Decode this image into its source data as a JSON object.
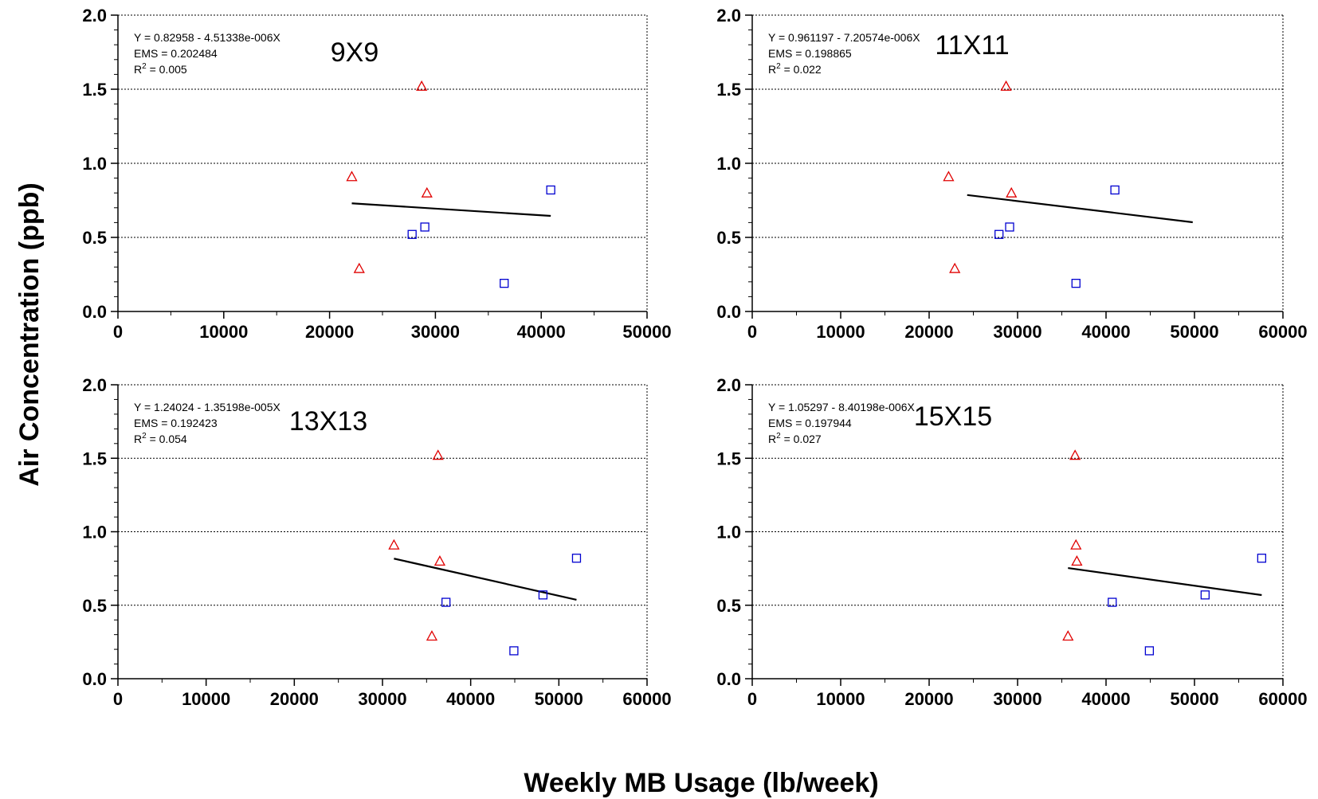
{
  "figure": {
    "ylabel": "Air Concentration (ppb)",
    "xlabel": "Weekly MB Usage (lb/week)"
  },
  "chart_data": [
    {
      "type": "scatter",
      "title": "9X9",
      "equation": "Y = 0.82958 - 4.51338e-006X",
      "ems": "EMS = 0.202484",
      "r2_prefix": "R",
      "r2_sup": "2",
      "r2_value": " = 0.005",
      "xlim": [
        0,
        50000
      ],
      "xticks": [
        "0",
        "10000",
        "20000",
        "30000",
        "40000",
        "50000"
      ],
      "xtick_values": [
        0,
        10000,
        20000,
        30000,
        40000,
        50000
      ],
      "ylim": [
        0,
        2
      ],
      "yticks": [
        "0.0",
        "0.5",
        "1.0",
        "1.5",
        "2.0"
      ],
      "ytick_values": [
        0,
        0.5,
        1.0,
        1.5,
        2.0
      ],
      "grid": "horizontal dotted",
      "series": [
        {
          "marker": "triangle",
          "color": "#e00000",
          "points": [
            [
              22100,
              0.91
            ],
            [
              22800,
              0.29
            ],
            [
              28700,
              1.52
            ],
            [
              29200,
              0.8
            ]
          ]
        },
        {
          "marker": "square",
          "color": "#0000d0",
          "points": [
            [
              27800,
              0.52
            ],
            [
              29000,
              0.57
            ],
            [
              36500,
              0.19
            ],
            [
              40900,
              0.82
            ]
          ]
        }
      ],
      "fit": {
        "x": [
          22100,
          40900
        ],
        "y": [
          0.7298,
          0.645
        ]
      }
    },
    {
      "type": "scatter",
      "title": "11X11",
      "equation": "Y = 0.961197 - 7.20574e-006X",
      "ems": "EMS = 0.198865",
      "r2_prefix": "R",
      "r2_sup": "2",
      "r2_value": " = 0.022",
      "xlim": [
        0,
        60000
      ],
      "xticks": [
        "0",
        "10000",
        "20000",
        "30000",
        "40000",
        "50000",
        "60000"
      ],
      "xtick_values": [
        0,
        10000,
        20000,
        30000,
        40000,
        50000,
        60000
      ],
      "ylim": [
        0,
        2
      ],
      "yticks": [
        "0.0",
        "0.5",
        "1.0",
        "1.5",
        "2.0"
      ],
      "ytick_values": [
        0,
        0.5,
        1.0,
        1.5,
        2.0
      ],
      "grid": "horizontal dotted",
      "series": [
        {
          "marker": "triangle",
          "color": "#e00000",
          "points": [
            [
              22200,
              0.91
            ],
            [
              22900,
              0.29
            ],
            [
              28700,
              1.52
            ],
            [
              29300,
              0.8
            ]
          ]
        },
        {
          "marker": "square",
          "color": "#0000d0",
          "points": [
            [
              27900,
              0.52
            ],
            [
              29100,
              0.57
            ],
            [
              36600,
              0.19
            ],
            [
              41000,
              0.82
            ]
          ]
        }
      ],
      "fit": {
        "x": [
          24300,
          49800
        ],
        "y": [
          0.7861,
          0.6023
        ]
      }
    },
    {
      "type": "scatter",
      "title": "13X13",
      "equation": "Y = 1.24024 - 1.35198e-005X",
      "ems": "EMS = 0.192423",
      "r2_prefix": "R",
      "r2_sup": "2",
      "r2_value": " = 0.054",
      "xlim": [
        0,
        60000
      ],
      "xticks": [
        "0",
        "10000",
        "20000",
        "30000",
        "40000",
        "50000",
        "60000"
      ],
      "xtick_values": [
        0,
        10000,
        20000,
        30000,
        40000,
        50000,
        60000
      ],
      "ylim": [
        0,
        2
      ],
      "yticks": [
        "0.0",
        "0.5",
        "1.0",
        "1.5",
        "2.0"
      ],
      "ytick_values": [
        0,
        0.5,
        1.0,
        1.5,
        2.0
      ],
      "grid": "horizontal dotted",
      "series": [
        {
          "marker": "triangle",
          "color": "#e00000",
          "points": [
            [
              31300,
              0.91
            ],
            [
              35600,
              0.29
            ],
            [
              36300,
              1.52
            ],
            [
              36500,
              0.8
            ]
          ]
        },
        {
          "marker": "square",
          "color": "#0000d0",
          "points": [
            [
              37200,
              0.52
            ],
            [
              44900,
              0.19
            ],
            [
              48200,
              0.57
            ],
            [
              52000,
              0.82
            ]
          ]
        }
      ],
      "fit": {
        "x": [
          31300,
          52000
        ],
        "y": [
          0.8171,
          0.5372
        ]
      }
    },
    {
      "type": "scatter",
      "title": "15X15",
      "equation": "Y = 1.05297 - 8.40198e-006X",
      "ems": "EMS = 0.197944",
      "r2_prefix": "R",
      "r2_sup": "2",
      "r2_value": " = 0.027",
      "xlim": [
        0,
        60000
      ],
      "xticks": [
        "0",
        "10000",
        "20000",
        "30000",
        "40000",
        "50000",
        "60000"
      ],
      "xtick_values": [
        0,
        10000,
        20000,
        30000,
        40000,
        50000,
        60000
      ],
      "ylim": [
        0,
        2
      ],
      "yticks": [
        "0.0",
        "0.5",
        "1.0",
        "1.5",
        "2.0"
      ],
      "ytick_values": [
        0,
        0.5,
        1.0,
        1.5,
        2.0
      ],
      "grid": "horizontal dotted",
      "series": [
        {
          "marker": "triangle",
          "color": "#e00000",
          "points": [
            [
              35700,
              0.29
            ],
            [
              36500,
              1.52
            ],
            [
              36600,
              0.91
            ],
            [
              36700,
              0.8
            ]
          ]
        },
        {
          "marker": "square",
          "color": "#0000d0",
          "points": [
            [
              40700,
              0.52
            ],
            [
              44900,
              0.19
            ],
            [
              51200,
              0.57
            ],
            [
              57600,
              0.82
            ]
          ]
        }
      ],
      "fit": {
        "x": [
          35700,
          57600
        ],
        "y": [
          0.753,
          0.569
        ]
      }
    }
  ]
}
